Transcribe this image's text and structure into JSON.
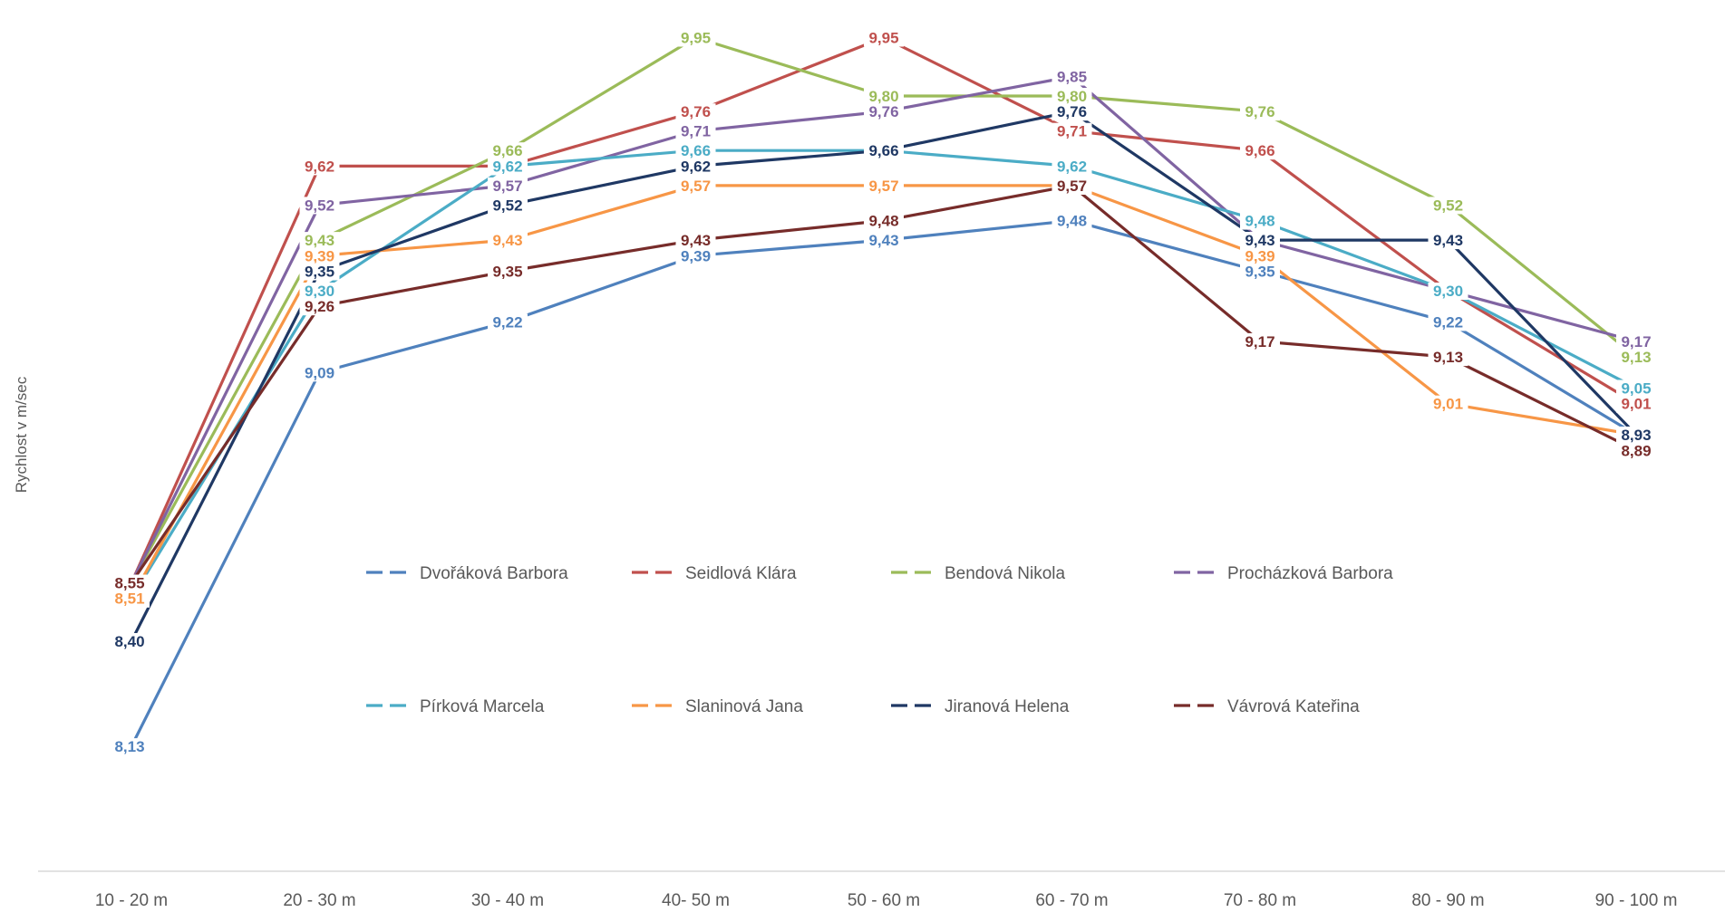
{
  "chart_data": {
    "type": "line",
    "ylabel": "Rychlost v m/sec",
    "xlabel": "",
    "title": "",
    "ylim": [
      8.0,
      10.0
    ],
    "grid": false,
    "legend_position": "center",
    "categories": [
      "10 - 20 m",
      "20 - 30 m",
      "30 - 40 m",
      "40- 50 m",
      "50 - 60 m",
      "60 - 70 m",
      "70 - 80 m",
      "80 - 90 m",
      "90 - 100 m"
    ],
    "series": [
      {
        "name": "Dvořáková Barbora",
        "color": "#4F81BD",
        "values": [
          8.13,
          9.09,
          9.22,
          9.39,
          9.43,
          9.48,
          9.35,
          9.22,
          8.93
        ]
      },
      {
        "name": "Seidlová Klára",
        "color": "#C0504D",
        "values": [
          8.55,
          9.62,
          9.62,
          9.76,
          9.95,
          9.71,
          9.66,
          9.3,
          9.01
        ]
      },
      {
        "name": "Bendová Nikola",
        "color": "#9BBB59",
        "values": [
          8.55,
          9.43,
          9.66,
          9.95,
          9.8,
          9.8,
          9.76,
          9.52,
          9.13
        ]
      },
      {
        "name": "Procházková Barbora",
        "color": "#8064A2",
        "values": [
          8.55,
          9.52,
          9.57,
          9.71,
          9.76,
          9.85,
          9.43,
          9.3,
          9.17
        ]
      },
      {
        "name": "Pírková Marcela",
        "color": "#4BACC6",
        "values": [
          8.51,
          9.3,
          9.62,
          9.66,
          9.66,
          9.62,
          9.48,
          9.3,
          9.05
        ]
      },
      {
        "name": "Slaninová Jana",
        "color": "#F79646",
        "values": [
          8.51,
          9.39,
          9.43,
          9.57,
          9.57,
          9.57,
          9.39,
          9.01,
          8.93
        ]
      },
      {
        "name": "Jiranová Helena",
        "color": "#1F3864",
        "values": [
          8.4,
          9.35,
          9.52,
          9.62,
          9.66,
          9.76,
          9.43,
          9.43,
          8.93
        ]
      },
      {
        "name": "Vávrová Kateřina",
        "color": "#772C2A",
        "values": [
          8.55,
          9.26,
          9.35,
          9.43,
          9.48,
          9.57,
          9.17,
          9.13,
          8.89
        ]
      }
    ]
  }
}
